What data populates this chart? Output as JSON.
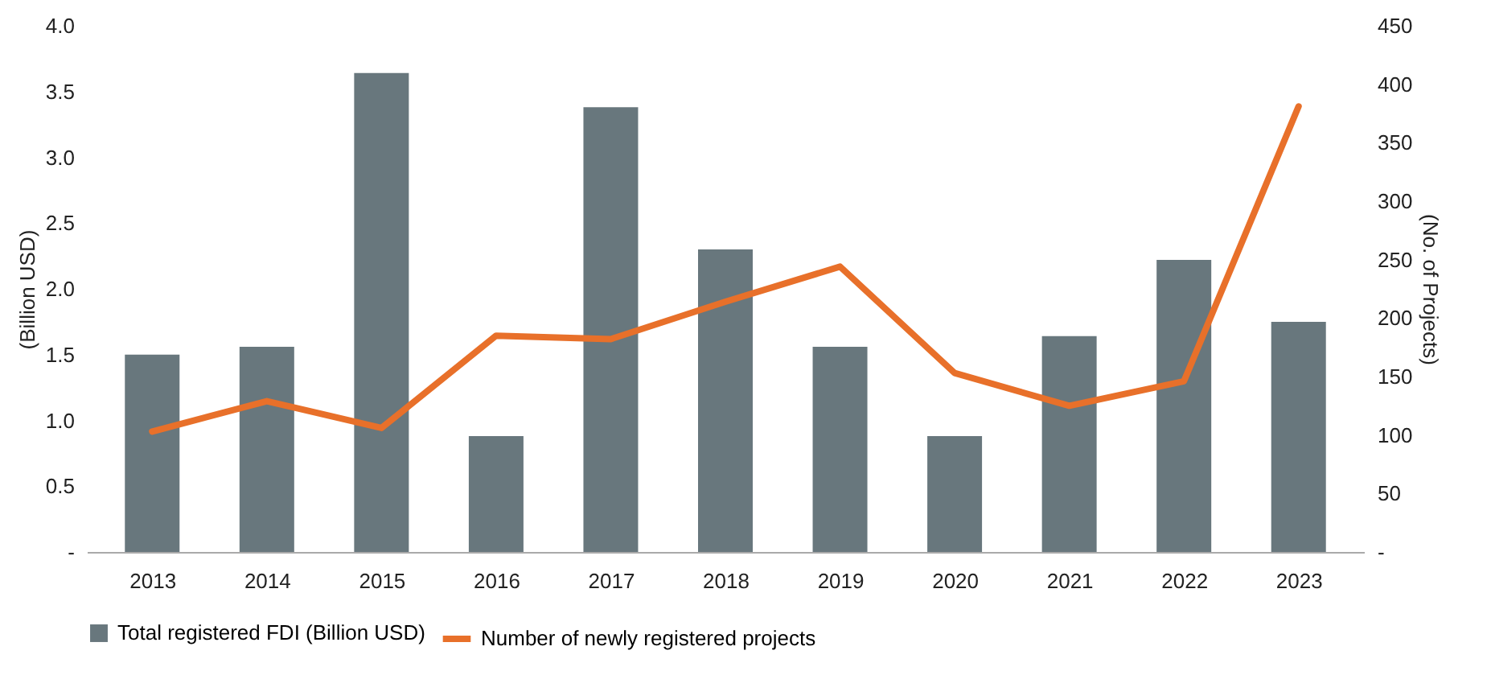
{
  "chart_data": {
    "type": "bar",
    "categories": [
      "2013",
      "2014",
      "2015",
      "2016",
      "2017",
      "2018",
      "2019",
      "2020",
      "2021",
      "2022",
      "2023"
    ],
    "ylabel": "(Billion USD)",
    "y2label": "(No. of Projects)",
    "ylim": [
      0,
      4.0
    ],
    "yticks": [
      {
        "value": 0,
        "label": "-"
      },
      {
        "value": 0.5,
        "label": "0.5"
      },
      {
        "value": 1,
        "label": "1.0"
      },
      {
        "value": 1.5,
        "label": "1.5"
      },
      {
        "value": 2,
        "label": "2.0"
      },
      {
        "value": 2.5,
        "label": "2.5"
      },
      {
        "value": 3,
        "label": "3.0"
      },
      {
        "value": 3.5,
        "label": "3.5"
      },
      {
        "value": 4,
        "label": "4.0"
      }
    ],
    "y2lim": [
      0,
      450
    ],
    "y2ticks": [
      {
        "value": 0,
        "label": "-"
      },
      50,
      100,
      150,
      200,
      250,
      300,
      350,
      400,
      450
    ],
    "grid": false,
    "legend": "bottom",
    "series": [
      {
        "name": "Total registered FDI (Billion USD)",
        "color": "#68777d",
        "values": [
          1.5,
          1.56,
          3.64,
          0.88,
          3.38,
          2.3,
          1.56,
          0.88,
          1.64,
          2.22,
          1.75
        ]
      },
      {
        "name": "Number of newly registered projects",
        "type": "line",
        "axis": "y2",
        "color": "#e8702a",
        "line_style": "solid",
        "marker": "none",
        "values": [
          103,
          129,
          106,
          185,
          182,
          214,
          244,
          153,
          125,
          146,
          381
        ]
      }
    ]
  }
}
